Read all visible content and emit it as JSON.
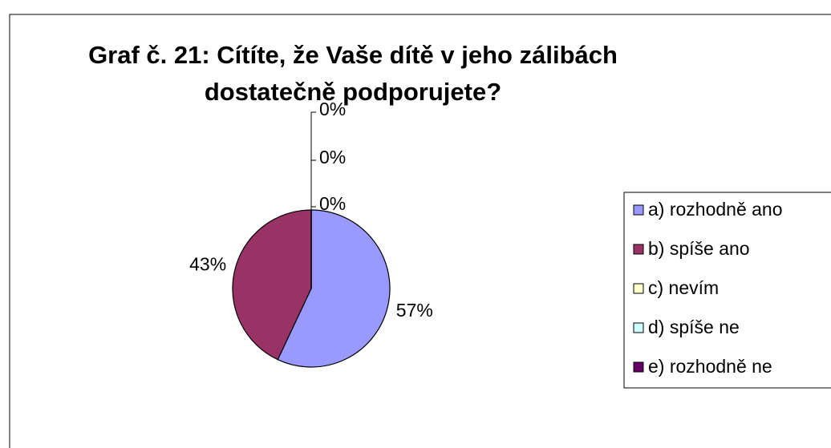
{
  "chart_data": {
    "type": "pie",
    "title": "Graf č. 21: Cítíte, že Vaše dítě v jeho zálibách dostatečně podporujete?",
    "categories": [
      "a) rozhodně ano",
      "b) spíše ano",
      "c) nevím",
      "d) spíše ne",
      "e) rozhodně ne"
    ],
    "values": [
      57,
      43,
      0,
      0,
      0
    ],
    "value_labels": [
      "57%",
      "43%",
      "0%",
      "0%",
      "0%"
    ],
    "colors": [
      "#9999ff",
      "#993366",
      "#ffffcc",
      "#ccffff",
      "#660066"
    ],
    "legend": "right"
  }
}
